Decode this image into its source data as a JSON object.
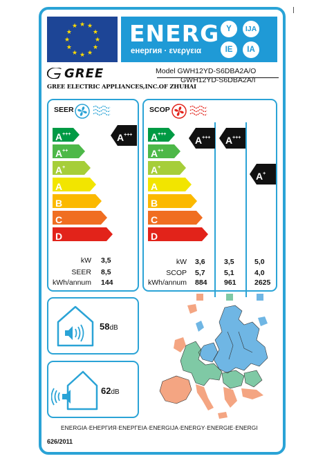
{
  "header": {
    "energy_word": "ENERG",
    "energy_sub": "енергия · ενεργεια",
    "lang_codes": [
      "Y",
      "IJA",
      "IE",
      "IA"
    ],
    "flag_color": "#1d4596",
    "band_color": "#1f9ad6"
  },
  "brand": {
    "name": "GREE",
    "supplier": "GREE ELECTRIC APPLIANCES,INC.OF ZHUHAI",
    "model_line1": "Model  GWH12YD-S6DBA2A/O",
    "model_line2": "GWH12YD-S6DBA2A/I"
  },
  "seer": {
    "title": "SEER",
    "rating": {
      "letter": "A",
      "sup": "+++"
    },
    "rows": [
      {
        "label": "kW",
        "value": "3,5"
      },
      {
        "label": "SEER",
        "value": "8,5"
      },
      {
        "label": "kWh/annum",
        "value": "144"
      }
    ]
  },
  "scop": {
    "title": "SCOP",
    "ratings": [
      {
        "letter": "A",
        "sup": "+++"
      },
      {
        "letter": "A",
        "sup": "+++"
      },
      {
        "letter": "A",
        "sup": "+"
      }
    ],
    "rows": [
      {
        "label": "kW",
        "values": [
          "3,6",
          "3,5",
          "5,0"
        ]
      },
      {
        "label": "SCOP",
        "values": [
          "5,7",
          "5,1",
          "4,0"
        ]
      },
      {
        "label": "kWh/annum",
        "values": [
          "884",
          "961",
          "2625"
        ]
      }
    ],
    "zone_colors": [
      "#f4a582",
      "#7fc9a5",
      "#6fb6e4"
    ]
  },
  "energy_classes": [
    {
      "letter": "A",
      "sup": "+++",
      "color": "#009a44"
    },
    {
      "letter": "A",
      "sup": "++",
      "color": "#4db848"
    },
    {
      "letter": "A",
      "sup": "+",
      "color": "#a6ce39"
    },
    {
      "letter": "A",
      "sup": "",
      "color": "#f2e500"
    },
    {
      "letter": "B",
      "sup": "",
      "color": "#fbb900"
    },
    {
      "letter": "C",
      "sup": "",
      "color": "#f06e21"
    },
    {
      "letter": "D",
      "sup": "",
      "color": "#e2231a"
    }
  ],
  "noise": {
    "indoor": {
      "value": "58",
      "unit": "dB"
    },
    "outdoor": {
      "value": "62",
      "unit": "dB"
    }
  },
  "footer": {
    "words": "ENERGIA·ЕНЕРГИЯ·ΕΝΕΡΓΕΙΑ·ENERGIJA·ENERGY·ENERGIE·ENERGI",
    "regulation": "626/2011"
  }
}
